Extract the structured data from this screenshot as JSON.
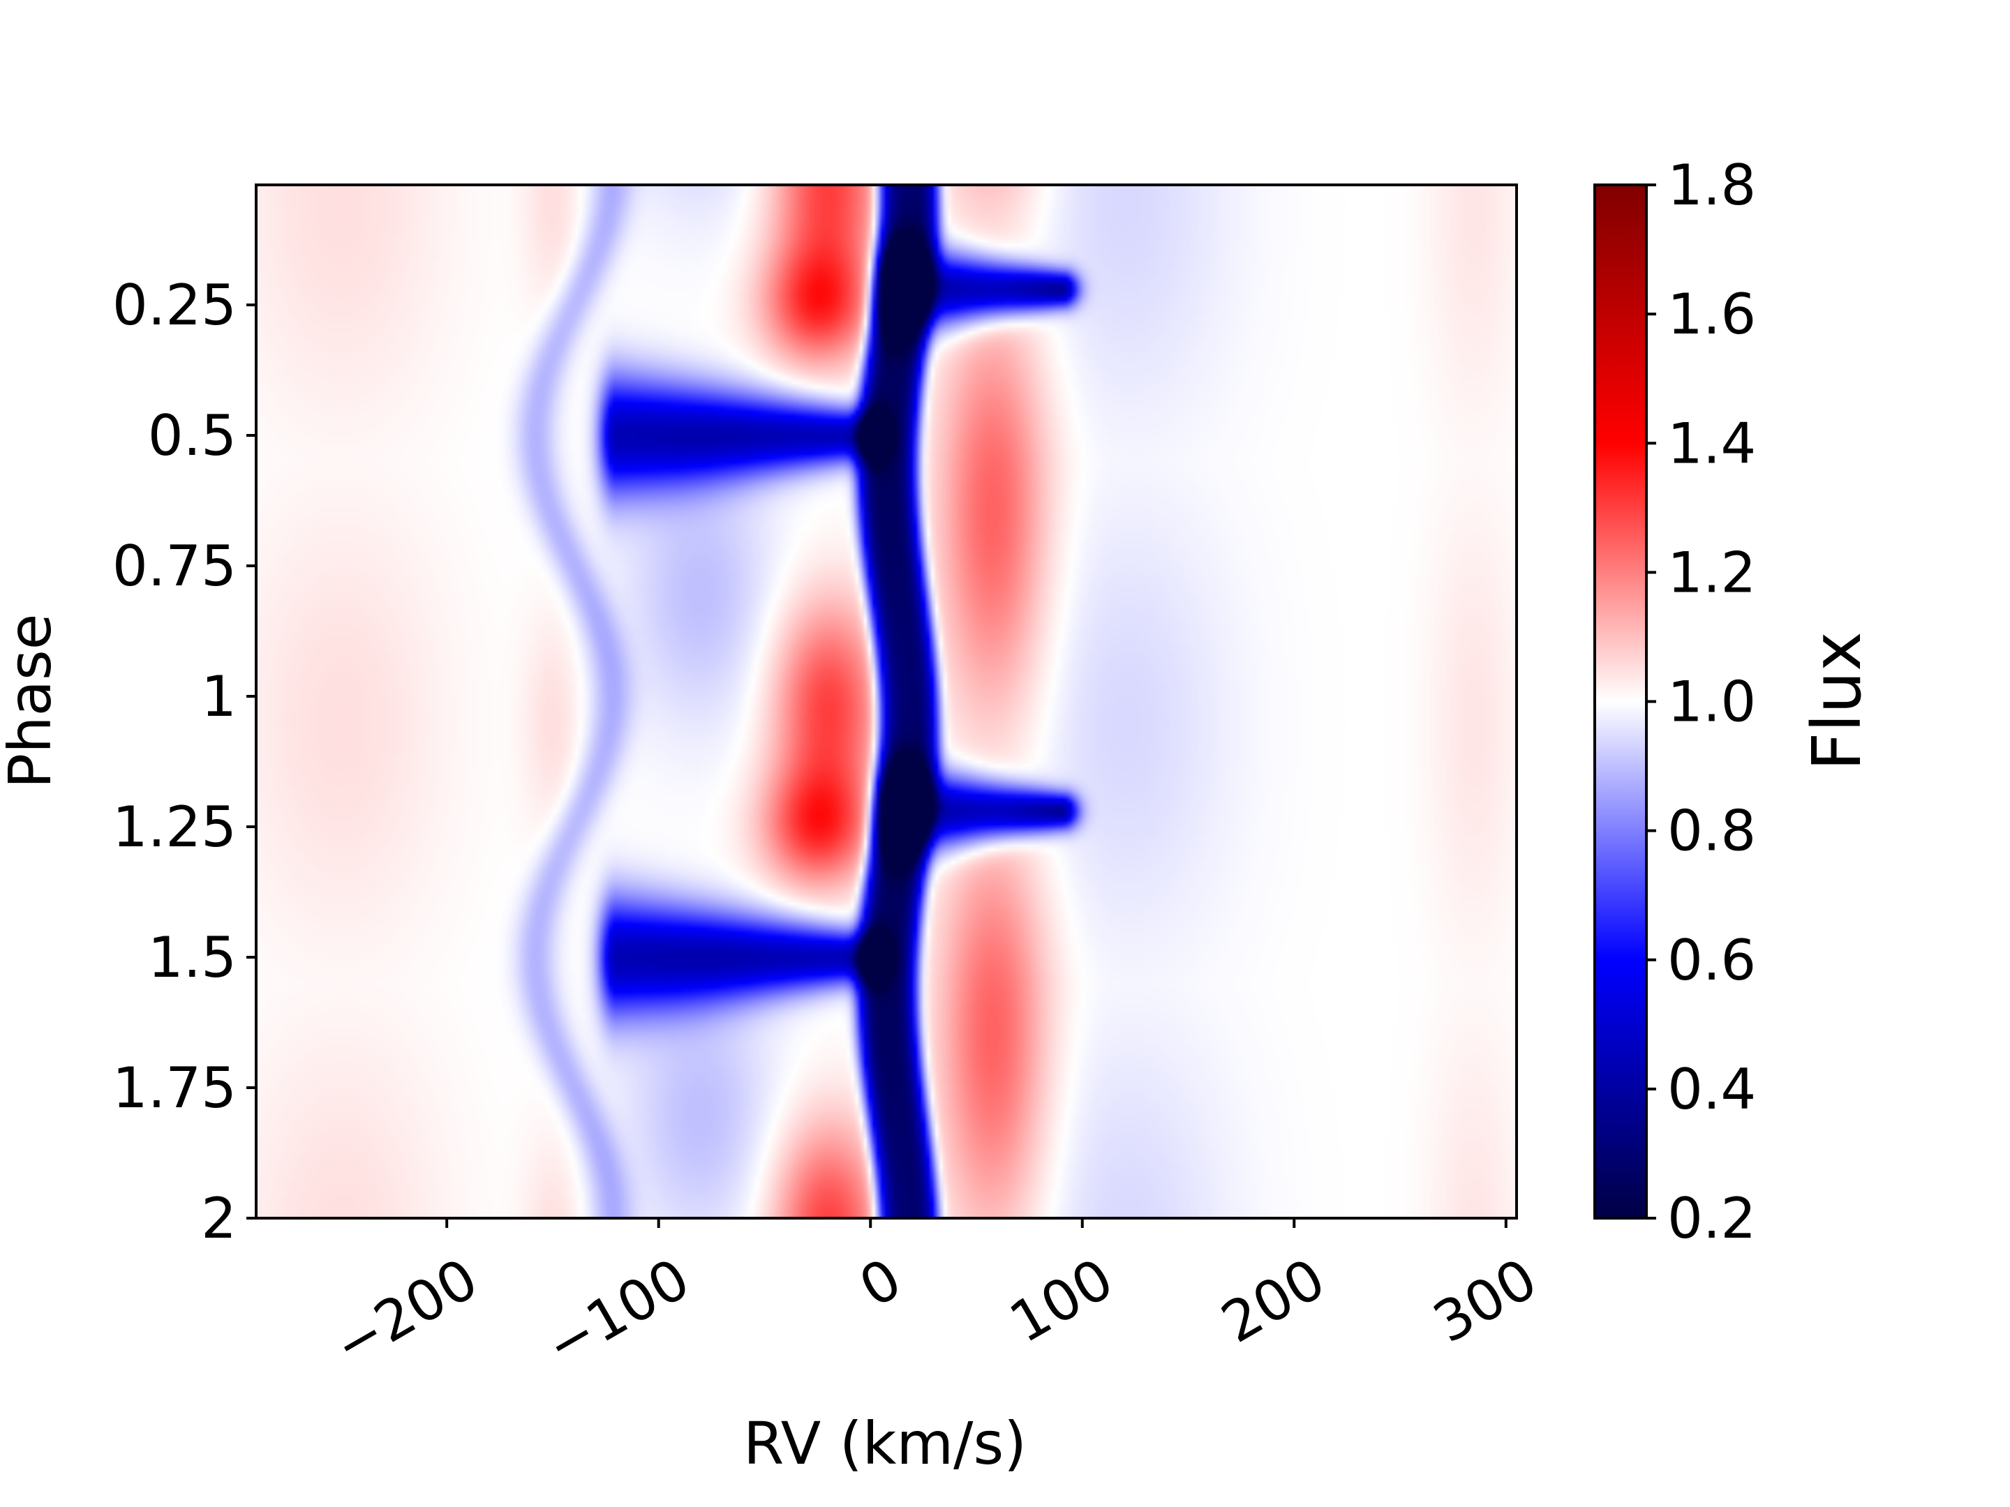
{
  "chart_data": {
    "type": "heatmap",
    "title": "",
    "xlabel": "RV (km/s)",
    "ylabel": "Phase",
    "colorbar_label": "Flux",
    "colormap": "seismic",
    "colormap_stops": [
      "#000044",
      "#0000ff",
      "#ffffff",
      "#ff0000",
      "#800000"
    ],
    "x_range": [
      -290,
      305
    ],
    "y_range": [
      0.02,
      2.0
    ],
    "y_inverted": true,
    "x_ticks": [
      -200,
      -100,
      0,
      100,
      200,
      300
    ],
    "x_tick_labels": [
      "−200",
      "−100",
      "0",
      "100",
      "200",
      "300"
    ],
    "y_ticks": [
      0.25,
      0.5,
      0.75,
      1,
      1.25,
      1.5,
      1.75,
      2
    ],
    "y_tick_labels": [
      "0.25",
      "0.5",
      "0.75",
      "1",
      "1.25",
      "1.5",
      "1.75",
      "2"
    ],
    "colorbar_range": [
      0.2,
      1.8
    ],
    "colorbar_ticks": [
      0.2,
      0.4,
      0.6,
      0.8,
      1.0,
      1.2,
      1.4,
      1.6,
      1.8
    ],
    "colorbar_tick_labels": [
      "0.2",
      "0.4",
      "0.6",
      "0.8",
      "1.0",
      "1.2",
      "1.4",
      "1.6",
      "1.8"
    ],
    "period": 1.0,
    "features": [
      {
        "kind": "absorption_core",
        "rv_center": 13,
        "rv_swing": 5,
        "width": 14,
        "depth": 0.75
      },
      {
        "kind": "absorption_tongue",
        "rv_from": 10,
        "rv_to": 90,
        "phase_center": 0.22,
        "phase_width": 0.06,
        "depth": 0.6
      },
      {
        "kind": "absorption_tongue",
        "rv_from": -120,
        "rv_to": 0,
        "phase_center": 0.5,
        "phase_width": 0.08,
        "depth": 0.55
      },
      {
        "kind": "emission",
        "rv_center": -20,
        "phase_center": 0.02,
        "rv_width": 18,
        "phase_width": 0.14,
        "amplitude": 0.3
      },
      {
        "kind": "emission",
        "rv_center": -25,
        "phase_center": 0.25,
        "rv_width": 18,
        "phase_width": 0.08,
        "amplitude": 0.3
      },
      {
        "kind": "emission",
        "rv_center": 58,
        "phase_center": 0.65,
        "rv_width": 18,
        "phase_width": 0.28,
        "amplitude": 0.25
      },
      {
        "kind": "absorption_wiggle",
        "rv_center": -140,
        "rv_swing": 18,
        "width": 7,
        "depth": 0.12
      },
      {
        "kind": "absorption_diffuse",
        "rv_center": -80,
        "phase_center": 0.8,
        "rv_width": 25,
        "phase_width": 0.18,
        "depth": 0.1
      },
      {
        "kind": "absorption_diffuse",
        "rv_center": 120,
        "phase_center": 0.05,
        "rv_width": 35,
        "phase_width": 0.3,
        "depth": 0.06
      },
      {
        "kind": "emission_diffuse",
        "rv_center": -250,
        "phase_center": 0.05,
        "rv_width": 35,
        "phase_width": 0.3,
        "amplitude": 0.05
      },
      {
        "kind": "emission_diffuse",
        "rv_center": -150,
        "phase_center": 0.05,
        "rv_width": 10,
        "phase_width": 0.15,
        "amplitude": 0.05
      },
      {
        "kind": "emission_diffuse",
        "rv_center": 285,
        "phase_center": 0.05,
        "rv_width": 15,
        "phase_width": 0.3,
        "amplitude": 0.04
      }
    ]
  }
}
